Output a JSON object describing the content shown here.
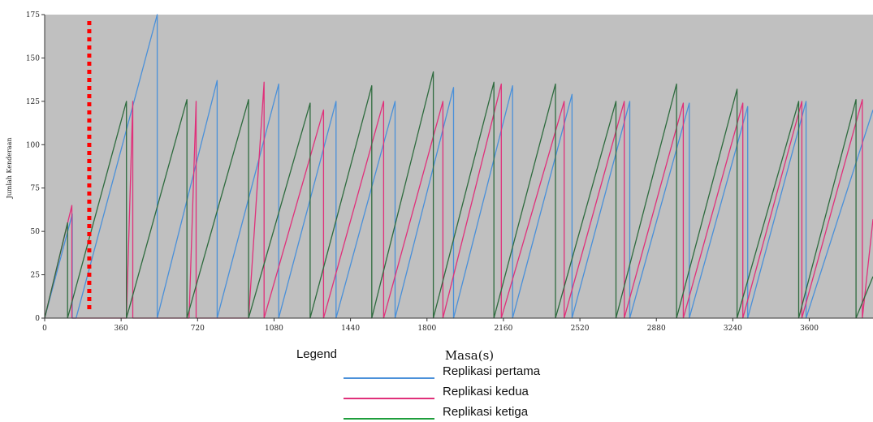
{
  "chart_data": {
    "type": "line",
    "title": "",
    "xlabel": "Masa(s)",
    "ylabel": "Jumlah Kenderaan",
    "xlim": [
      0,
      3900
    ],
    "ylim": [
      0,
      175
    ],
    "xticks": [
      0,
      360,
      720,
      1080,
      1440,
      1800,
      2160,
      2520,
      2880,
      3240,
      3600
    ],
    "yticks": [
      0,
      25,
      50,
      75,
      100,
      125,
      150,
      175
    ],
    "xtick_labels": [
      "0",
      "360",
      "720",
      "1080",
      "1440",
      "1800",
      "2160",
      "2520",
      "2880",
      "3240",
      "3600"
    ],
    "ytick_labels": [
      "0",
      "25",
      "50",
      "75",
      "100",
      "125",
      "150",
      "175"
    ],
    "grid": false,
    "plot_background": "#c0c0c0",
    "marker_line": {
      "x": 210,
      "color": "#ff0000",
      "style": "dotted"
    },
    "legend": {
      "title": "Legend",
      "placement": "bottom-center"
    },
    "series": [
      {
        "name": "Replikasi pertama",
        "color": "#4a90d9",
        "x": [
          0,
          130,
          130,
          148,
          530,
          530,
          812,
          812,
          1102,
          1102,
          1372,
          1372,
          1650,
          1650,
          1925,
          1925,
          2203,
          2203,
          2483,
          2483,
          2755,
          2755,
          3035,
          3035,
          3310,
          3310,
          3585,
          3585,
          3900
        ],
        "y": [
          0,
          60,
          0,
          0,
          175,
          0,
          137,
          0,
          135,
          0,
          125,
          0,
          125,
          0,
          133,
          0,
          134,
          0,
          129,
          0,
          125,
          0,
          124,
          0,
          122,
          0,
          125,
          0,
          120
        ]
      },
      {
        "name": "Replikasi kedua",
        "color": "#e0307a",
        "x": [
          0,
          128,
          128,
          385,
          385,
          415,
          415,
          680,
          680,
          713,
          713,
          960,
          960,
          1033,
          1033,
          1313,
          1313,
          1596,
          1596,
          1875,
          1875,
          2150,
          2150,
          2446,
          2446,
          2729,
          2729,
          3007,
          3007,
          3287,
          3287,
          3565,
          3565,
          3850,
          3850,
          3900
        ],
        "y": [
          0,
          65,
          0,
          0,
          0,
          125,
          0,
          0,
          0,
          125,
          0,
          0,
          0,
          136,
          0,
          120,
          0,
          125,
          0,
          125,
          0,
          135,
          0,
          125,
          0,
          125,
          0,
          124,
          0,
          124,
          0,
          125,
          0,
          126,
          0,
          57
        ]
      },
      {
        "name": "Replikasi ketiga",
        "color": "#2e6b3e",
        "x": [
          0,
          108,
          108,
          385,
          385,
          670,
          670,
          960,
          960,
          1250,
          1250,
          1540,
          1540,
          1830,
          1830,
          2115,
          2115,
          2405,
          2405,
          2690,
          2690,
          2975,
          2975,
          3260,
          3260,
          3550,
          3550,
          3820,
          3820,
          3900
        ],
        "y": [
          0,
          55,
          0,
          125,
          0,
          126,
          0,
          126,
          0,
          124,
          0,
          134,
          0,
          142,
          0,
          136,
          0,
          135,
          0,
          125,
          0,
          135,
          0,
          132,
          0,
          125,
          0,
          126,
          0,
          24
        ]
      }
    ]
  }
}
